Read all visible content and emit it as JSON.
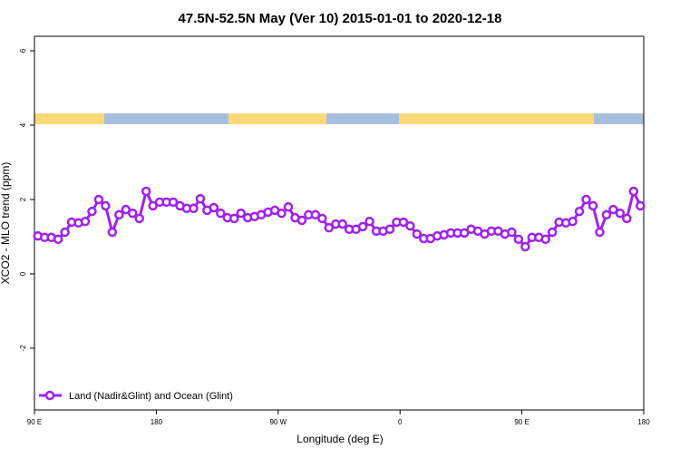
{
  "chart_data": {
    "type": "line",
    "title": "47.5N-52.5N May (Ver 10)   2015-01-01 to 2020-12-18",
    "x_label": "Longitude (deg E)",
    "y_label": "XCO2 - MLO trend (ppm)",
    "xlim": [
      90,
      540
    ],
    "xticks": [
      {
        "value": 90,
        "label": "90 E"
      },
      180,
      {
        "value": 270,
        "label": "90 W"
      },
      {
        "value": 360,
        "label": "0"
      },
      {
        "value": 450,
        "label": "90 E"
      },
      {
        "value": 540,
        "label": "180"
      }
    ],
    "ylim": [
      -3.66,
      6.39
    ],
    "yticks": [
      -2,
      0,
      2,
      4,
      6
    ],
    "legend_position": "bottomleft",
    "x": [
      92.5,
      97.5,
      102.5,
      107.5,
      112.5,
      117.5,
      122.5,
      127.5,
      132.5,
      137.5,
      142.5,
      147.5,
      152.5,
      157.5,
      162.5,
      167.5,
      172.5,
      177.5,
      182.5,
      187.5,
      192.5,
      197.5,
      202.5,
      207.5,
      212.5,
      217.5,
      222.5,
      227.5,
      232.5,
      237.5,
      242.5,
      247.5,
      252.5,
      257.5,
      262.5,
      267.5,
      272.5,
      277.5,
      282.5,
      287.5,
      292.5,
      297.5,
      302.5,
      307.5,
      312.5,
      317.5,
      322.5,
      327.5,
      332.5,
      337.5,
      342.5,
      347.5,
      352.5,
      357.5,
      362.5,
      367.5,
      372.5,
      377.5,
      382.5,
      387.5,
      392.5,
      397.5,
      402.5,
      407.5,
      412.5,
      417.5,
      422.5,
      427.5,
      432.5,
      437.5,
      442.5,
      447.5,
      452.5,
      457.5,
      462.5,
      467.5,
      472.5,
      477.5,
      482.5,
      487.5,
      492.5,
      497.5,
      502.5,
      507.5,
      512.5,
      517.5,
      522.5,
      527.5,
      532.5,
      537.5
    ],
    "series": [
      {
        "name": "Land (Nadir&Glint) and Ocean (Glint)",
        "color": "#a020f0",
        "values": [
          1.02,
          0.98,
          0.98,
          0.93,
          1.12,
          1.39,
          1.37,
          1.41,
          1.68,
          2.0,
          1.83,
          1.12,
          1.59,
          1.73,
          1.63,
          1.49,
          2.22,
          1.83,
          1.93,
          1.93,
          1.93,
          1.83,
          1.76,
          1.76,
          2.02,
          1.71,
          1.78,
          1.63,
          1.51,
          1.49,
          1.63,
          1.51,
          1.54,
          1.59,
          1.66,
          1.71,
          1.63,
          1.8,
          1.51,
          1.44,
          1.59,
          1.59,
          1.49,
          1.24,
          1.34,
          1.34,
          1.2,
          1.2,
          1.27,
          1.41,
          1.15,
          1.15,
          1.2,
          1.39,
          1.39,
          1.29,
          1.07,
          0.95,
          0.95,
          1.02,
          1.05,
          1.1,
          1.1,
          1.1,
          1.2,
          1.15,
          1.07,
          1.15,
          1.15,
          1.07,
          1.12,
          0.93,
          0.73,
          0.98,
          0.98,
          0.93,
          1.12,
          1.39,
          1.37,
          1.41,
          1.68,
          2.0,
          1.83,
          1.12,
          1.59,
          1.73,
          1.63,
          1.49,
          2.22,
          1.83
        ]
      }
    ]
  }
}
